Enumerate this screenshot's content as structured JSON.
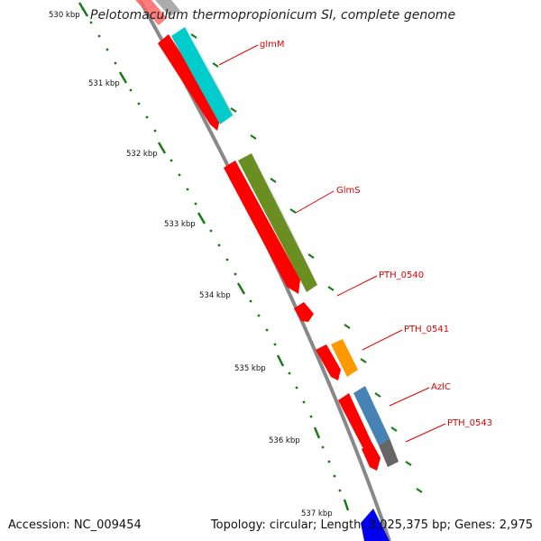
{
  "title": "Pelotomaculum thermopropionicum SI, complete genome",
  "accession_line": "Accession: NC_009454",
  "summary_line": "Topology: circular; Length: 3,025,375 bp; Genes: 2,975",
  "scale": {
    "unit": "kbp",
    "ticks": [
      {
        "value": 530,
        "label": "530 kbp"
      },
      {
        "value": 531,
        "label": "531 kbp"
      },
      {
        "value": 532,
        "label": "532 kbp"
      },
      {
        "value": 533,
        "label": "533 kbp"
      },
      {
        "value": 534,
        "label": "534 kbp"
      },
      {
        "value": 535,
        "label": "535 kbp"
      },
      {
        "value": 536,
        "label": "536 kbp"
      },
      {
        "value": 537,
        "label": "537 kbp"
      }
    ]
  },
  "genes": [
    {
      "name": "glmM",
      "color": "#00cccc"
    },
    {
      "name": "GlmS",
      "color": "#6b8e23"
    },
    {
      "name": "PTH_0540",
      "color": "#ff0000"
    },
    {
      "name": "PTH_0541",
      "color": "#ff9900"
    },
    {
      "name": "AzlC",
      "color": "#4682b4"
    },
    {
      "name": "PTH_0543",
      "color": "#666666"
    }
  ],
  "colors": {
    "backbone": "#888888",
    "cds": "#ff0000",
    "tick": "#1a7a1a",
    "label": "#e00000",
    "bottom_feature": "#0000ee"
  }
}
